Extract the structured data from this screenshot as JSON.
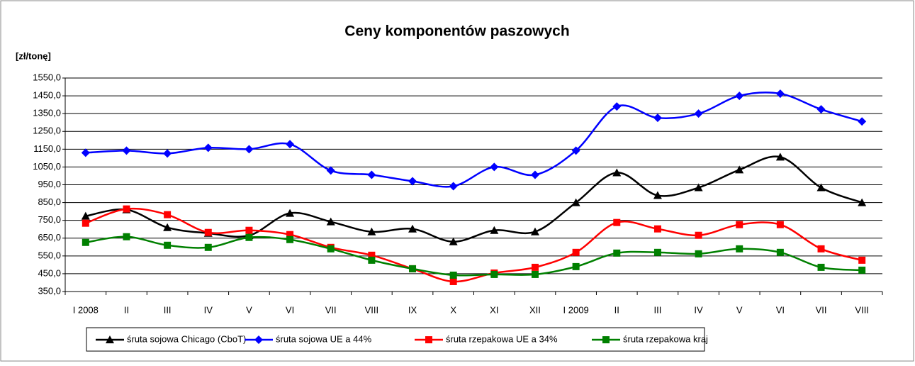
{
  "chart_data": {
    "type": "line",
    "title": "Ceny komponentów paszowych",
    "y_label": "[zł/tonę]",
    "categories": [
      "I 2008",
      "II",
      "III",
      "IV",
      "V",
      "VI",
      "VII",
      "VIII",
      "IX",
      "X",
      "XI",
      "XII",
      "I 2009",
      "II",
      "III",
      "IV",
      "V",
      "VI",
      "VII",
      "VIII"
    ],
    "ylim": [
      350,
      1550
    ],
    "yticks": [
      {
        "value": 350,
        "label": "350,0"
      },
      {
        "value": 450,
        "label": "450,0"
      },
      {
        "value": 550,
        "label": "550,0"
      },
      {
        "value": 650,
        "label": "650,0"
      },
      {
        "value": 750,
        "label": "750,0"
      },
      {
        "value": 850,
        "label": "850,0"
      },
      {
        "value": 950,
        "label": "950,0"
      },
      {
        "value": 1050,
        "label": "1050,0"
      },
      {
        "value": 1150,
        "label": "1150,0"
      },
      {
        "value": 1250,
        "label": "1250,0"
      },
      {
        "value": 1350,
        "label": "1350,0"
      },
      {
        "value": 1450,
        "label": "1450,0"
      },
      {
        "value": 1550,
        "label": "1550,0"
      }
    ],
    "grid": true,
    "smooth": true,
    "legend": "bottom",
    "series": [
      {
        "name": "śruta sojowa Chicago (CboT)",
        "color": "#000000",
        "marker": "triangle",
        "values": [
          774,
          810,
          710,
          678,
          665,
          790,
          742,
          686,
          702,
          630,
          694,
          686,
          850,
          1018,
          890,
          934,
          1034,
          1106,
          934,
          850
        ]
      },
      {
        "name": "śruta sojowa UE a 44%",
        "color": "#0000ff",
        "marker": "diamond",
        "values": [
          1130,
          1142,
          1126,
          1158,
          1150,
          1178,
          1030,
          1006,
          970,
          942,
          1050,
          1006,
          1142,
          1390,
          1326,
          1350,
          1450,
          1462,
          1374,
          1306
        ]
      },
      {
        "name": "śruta rzepakowa UE a 34%",
        "color": "#ff0000",
        "marker": "square",
        "values": [
          734,
          814,
          782,
          682,
          694,
          670,
          598,
          554,
          478,
          406,
          454,
          486,
          570,
          738,
          702,
          666,
          726,
          726,
          590,
          526
        ]
      },
      {
        "name": "śruta rzepakowa kraj",
        "color": "#008000",
        "marker": "square",
        "values": [
          626,
          658,
          610,
          598,
          654,
          642,
          590,
          526,
          478,
          442,
          446,
          446,
          490,
          566,
          570,
          562,
          590,
          570,
          486,
          470
        ]
      }
    ]
  }
}
